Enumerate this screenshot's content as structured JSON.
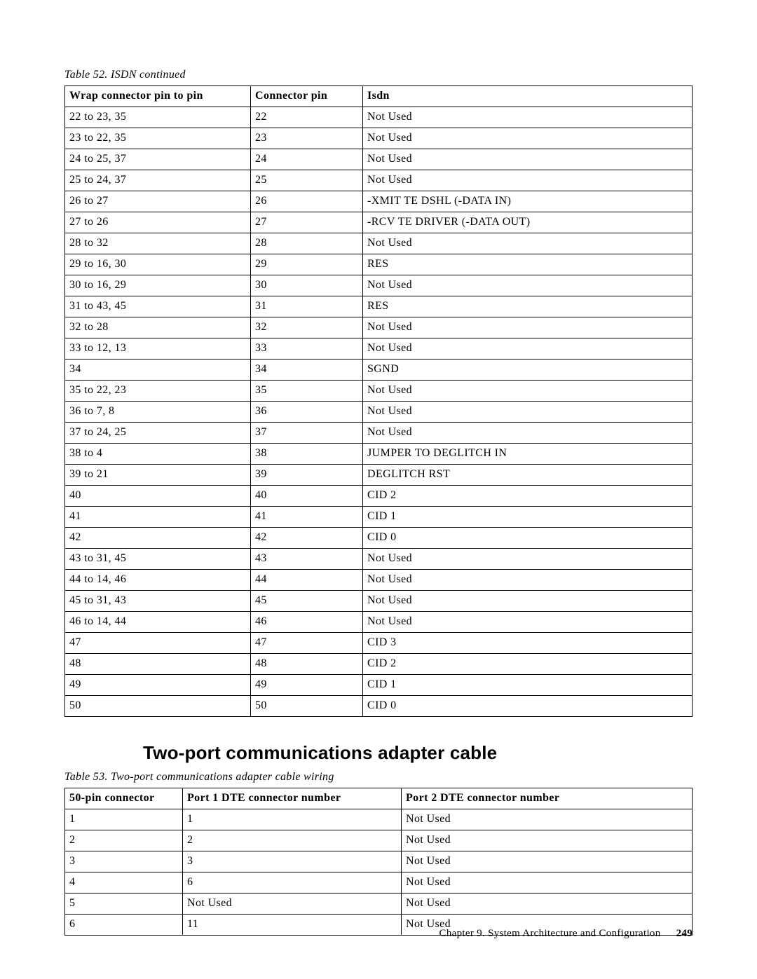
{
  "table1": {
    "caption": "Table 52. ISDN  continued",
    "headers": [
      "Wrap connector pin to pin",
      "Connector pin",
      "Isdn"
    ],
    "rows": [
      [
        "22  to  23,  35",
        "22",
        "Not  Used"
      ],
      [
        "23  to  22,  35",
        "23",
        "Not  Used"
      ],
      [
        "24  to  25,  37",
        "24",
        "Not  Used"
      ],
      [
        "25  to  24,  37",
        "25",
        "Not  Used"
      ],
      [
        "26  to  27",
        "26",
        "-XMIT  TE  DSHL  (-DATA  IN)"
      ],
      [
        "27  to  26",
        "27",
        "-RCV  TE  DRIVER  (-DATA  OUT)"
      ],
      [
        "28  to  32",
        "28",
        "Not  Used"
      ],
      [
        "29  to  16,  30",
        "29",
        "RES"
      ],
      [
        "30  to  16,  29",
        "30",
        "Not  Used"
      ],
      [
        "31  to  43,  45",
        "31",
        "RES"
      ],
      [
        "32  to  28",
        "32",
        "Not  Used"
      ],
      [
        "33  to  12,  13",
        "33",
        "Not  Used"
      ],
      [
        "34",
        "34",
        "SGND"
      ],
      [
        "35  to  22,  23",
        "35",
        "Not  Used"
      ],
      [
        "36  to  7,  8",
        "36",
        "Not  Used"
      ],
      [
        "37  to  24,  25",
        "37",
        "Not  Used"
      ],
      [
        "38  to  4",
        "38",
        "JUMPER  TO  DEGLITCH  IN"
      ],
      [
        "39  to  21",
        "39",
        "DEGLITCH  RST"
      ],
      [
        "40",
        "40",
        "CID  2"
      ],
      [
        "41",
        "41",
        "CID  1"
      ],
      [
        "42",
        "42",
        "CID  0"
      ],
      [
        "43  to  31,  45",
        "43",
        "Not  Used"
      ],
      [
        "44  to  14,  46",
        "44",
        "Not  Used"
      ],
      [
        "45  to  31,  43",
        "45",
        "Not  Used"
      ],
      [
        "46  to  14,  44",
        "46",
        "Not  Used"
      ],
      [
        "47",
        "47",
        "CID  3"
      ],
      [
        "48",
        "48",
        "CID  2"
      ],
      [
        "49",
        "49",
        "CID  1"
      ],
      [
        "50",
        "50",
        "CID  0"
      ]
    ]
  },
  "section_heading": "Two-port communications adapter cable",
  "table2": {
    "caption": "Table 53. Two-port communications adapter cable wiring",
    "headers": [
      "50-pin connector",
      "Port 1 DTE connector number",
      "Port 2 DTE connector number"
    ],
    "rows": [
      [
        "1",
        "1",
        "Not  Used"
      ],
      [
        "2",
        "2",
        "Not  Used"
      ],
      [
        "3",
        "3",
        "Not  Used"
      ],
      [
        "4",
        "6",
        "Not  Used"
      ],
      [
        "5",
        "Not  Used",
        "Not  Used"
      ],
      [
        "6",
        "11",
        "Not  Used"
      ]
    ]
  },
  "footer": {
    "chapter": "Chapter 9. System Architecture and Configuration",
    "page": "249"
  }
}
